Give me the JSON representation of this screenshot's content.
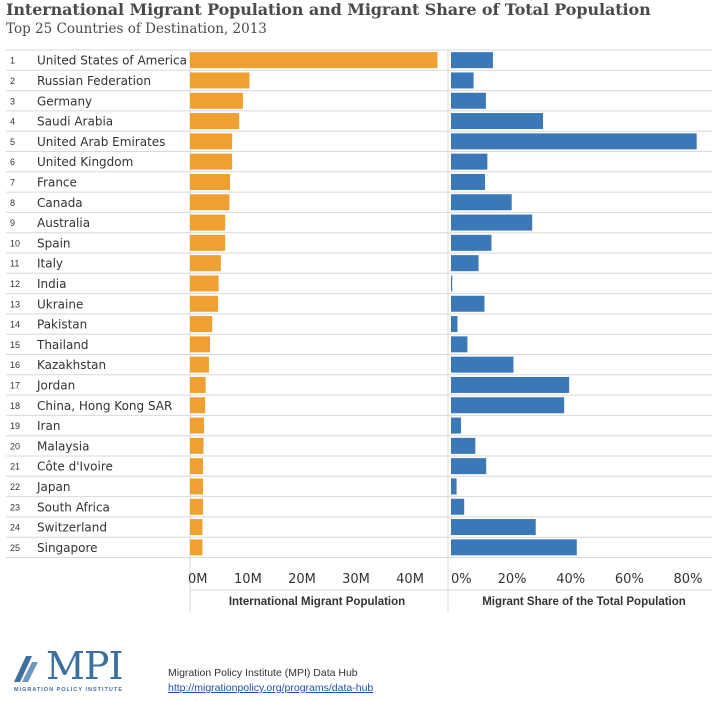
{
  "title": "International Migrant Population and Migrant Share of Total Population",
  "subtitle": "Top 25 Countries of Destination, 2013",
  "colors": {
    "population_bar": "#f0a030",
    "share_bar": "#3a78b8",
    "grid": "#d9d9d9",
    "text": "#333333"
  },
  "chart_data": [
    {
      "type": "bar",
      "orientation": "horizontal",
      "xlabel": "International Migrant Population",
      "xlim": [
        0,
        47000000
      ],
      "xticks": [
        0,
        10000000,
        20000000,
        30000000,
        40000000
      ],
      "xtick_labels": [
        "0M",
        "10M",
        "20M",
        "30M",
        "40M"
      ],
      "categories": [
        "United States of America",
        "Russian Federation",
        "Germany",
        "Saudi Arabia",
        "United Arab Emirates",
        "United Kingdom",
        "France",
        "Canada",
        "Australia",
        "Spain",
        "Italy",
        "India",
        "Ukraine",
        "Pakistan",
        "Thailand",
        "Kazakhstan",
        "Jordan",
        "China, Hong Kong SAR",
        "Iran",
        "Malaysia",
        "Côte d'Ivoire",
        "Japan",
        "South Africa",
        "Switzerland",
        "Singapore"
      ],
      "values": [
        45800000,
        11000000,
        9800000,
        9100000,
        7800000,
        7800000,
        7400000,
        7300000,
        6500000,
        6500000,
        5700000,
        5300000,
        5200000,
        4100000,
        3700000,
        3500000,
        2900000,
        2800000,
        2600000,
        2500000,
        2400000,
        2400000,
        2400000,
        2300000,
        2300000
      ],
      "grid": true
    },
    {
      "type": "bar",
      "orientation": "horizontal",
      "xlabel": "Migrant Share of the Total Population",
      "xlim": [
        0,
        0.88
      ],
      "xticks": [
        0,
        0.2,
        0.4,
        0.6,
        0.8
      ],
      "xtick_labels": [
        "0%",
        "20%",
        "40%",
        "60%",
        "80%"
      ],
      "categories": [
        "United States of America",
        "Russian Federation",
        "Germany",
        "Saudi Arabia",
        "United Arab Emirates",
        "United Kingdom",
        "France",
        "Canada",
        "Australia",
        "Spain",
        "Italy",
        "India",
        "Ukraine",
        "Pakistan",
        "Thailand",
        "Kazakhstan",
        "Jordan",
        "China, Hong Kong SAR",
        "Iran",
        "Malaysia",
        "Côte d'Ivoire",
        "Japan",
        "South Africa",
        "Switzerland",
        "Singapore"
      ],
      "values": [
        0.143,
        0.077,
        0.119,
        0.314,
        0.838,
        0.124,
        0.116,
        0.207,
        0.277,
        0.138,
        0.094,
        0.004,
        0.114,
        0.022,
        0.056,
        0.213,
        0.403,
        0.386,
        0.034,
        0.083,
        0.12,
        0.019,
        0.045,
        0.289,
        0.429
      ],
      "grid": true
    }
  ],
  "ranks": [
    "1",
    "2",
    "3",
    "4",
    "5",
    "6",
    "7",
    "8",
    "9",
    "10",
    "11",
    "12",
    "13",
    "14",
    "15",
    "16",
    "17",
    "18",
    "19",
    "20",
    "21",
    "22",
    "23",
    "24",
    "25"
  ],
  "footer": {
    "logo_text": "MPI",
    "logo_subtext": "MIGRATION POLICY INSTITUTE",
    "source_line": "Migration Policy Institute (MPI) Data Hub",
    "source_url": "http://migrationpolicy.org/programs/data-hub"
  }
}
